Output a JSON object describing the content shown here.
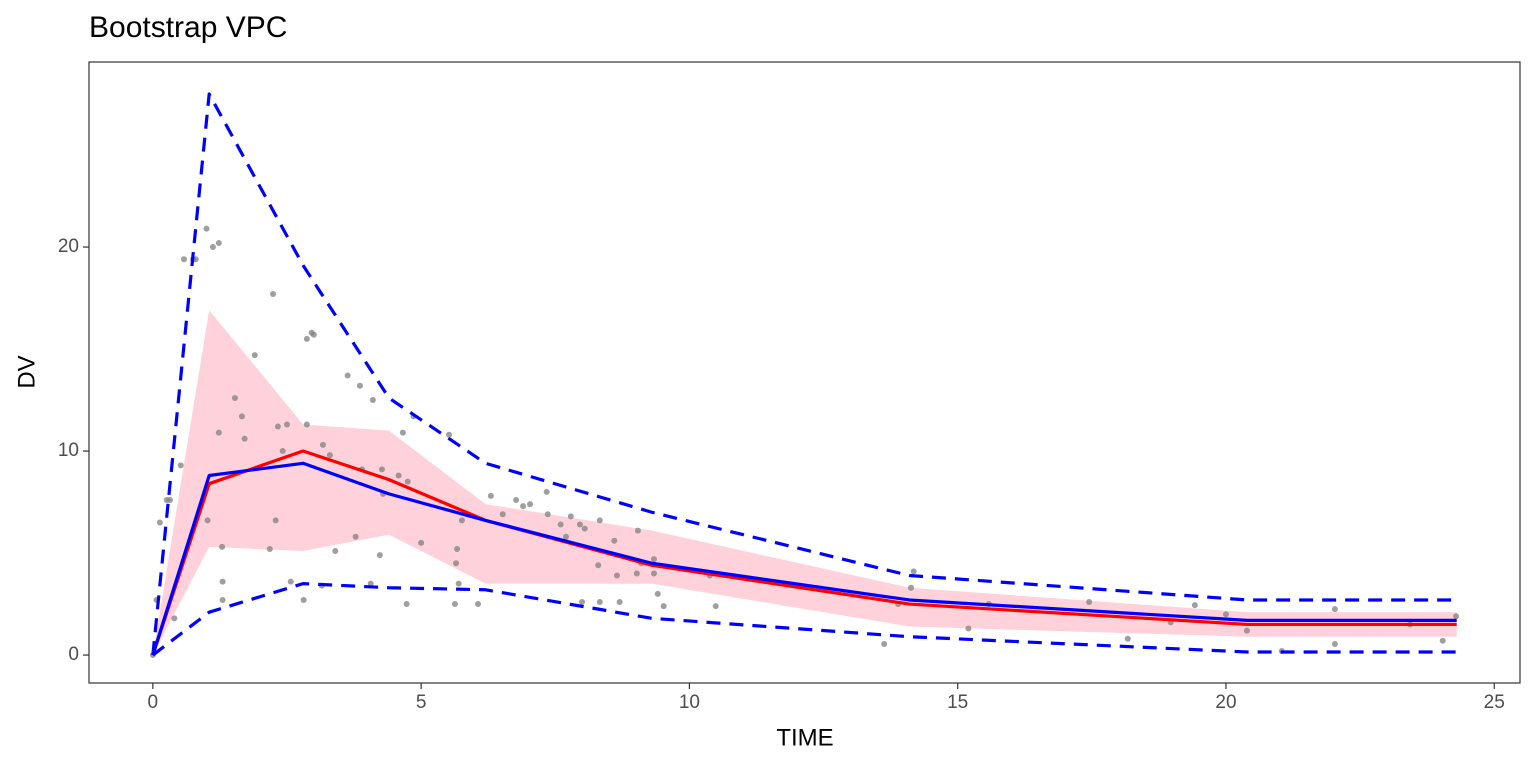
{
  "chart_data": {
    "type": "vpc",
    "title": "Bootstrap VPC",
    "x_label": "TIME",
    "y_label": "DV",
    "xlim": [
      -1.19,
      25.48
    ],
    "ylim": [
      -1.37,
      29.07
    ],
    "xticks": [
      0,
      5,
      10,
      15,
      20,
      25
    ],
    "yticks": [
      0,
      10,
      20
    ],
    "grid": false,
    "x": [
      0,
      1.05,
      2.8,
      4.4,
      6.2,
      9.3,
      14.1,
      20.4,
      24.3
    ],
    "band": {
      "color": "#ffd1da",
      "lower": [
        0,
        5.3,
        5.1,
        5.9,
        3.5,
        3.5,
        1.4,
        0.9,
        0.9
      ],
      "upper": [
        0,
        16.9,
        11.3,
        11.0,
        7.4,
        6.1,
        3.3,
        2.1,
        2.1
      ]
    },
    "points": {
      "color": "#7f7f7f",
      "x": [
        0,
        0.07,
        0.13,
        0.26,
        0.32,
        0.4,
        0.52,
        0.58,
        0.75,
        0.8,
        1.0,
        1.02,
        1.12,
        1.23,
        1.23,
        1.29,
        1.3,
        1.3,
        1.53,
        1.66,
        1.71,
        1.9,
        2.18,
        2.24,
        2.29,
        2.33,
        2.42,
        2.5,
        2.57,
        2.81,
        2.87,
        2.87,
        2.96,
        3.0,
        3.15,
        3.17,
        3.3,
        3.4,
        3.63,
        3.78,
        3.86,
        3.9,
        4.06,
        4.1,
        4.23,
        4.27,
        4.29,
        4.58,
        4.75,
        4.73,
        4.66,
        4.86,
        5.0,
        5.52,
        5.63,
        5.67,
        5.7,
        5.65,
        5.76,
        6.06,
        6.3,
        6.52,
        6.77,
        6.9,
        7.03,
        7.34,
        7.36,
        7.6,
        7.7,
        7.79,
        7.96,
        8.05,
        8.0,
        8.3,
        8.33,
        8.33,
        8.6,
        8.65,
        8.7,
        9.02,
        9.04,
        9.1,
        9.34,
        9.34,
        9.41,
        9.52,
        10.2,
        10.38,
        10.49,
        13.63,
        13.89,
        14.13,
        14.18,
        15.2,
        15.58,
        17.45,
        18.17,
        18.97,
        19.42,
        20.0,
        20.39,
        21.04,
        22.03,
        22.03,
        23.43,
        24.04,
        24.29
      ],
      "y": [
        0,
        2.7,
        6.5,
        7.6,
        7.6,
        1.8,
        9.3,
        19.4,
        19.4,
        19.4,
        20.9,
        6.6,
        20.0,
        20.2,
        10.9,
        5.3,
        3.6,
        2.7,
        12.6,
        11.7,
        10.6,
        14.7,
        5.2,
        17.7,
        6.6,
        11.2,
        10.0,
        11.3,
        3.6,
        2.7,
        11.3,
        15.5,
        15.8,
        15.7,
        3.4,
        10.3,
        9.8,
        5.1,
        13.7,
        5.8,
        13.2,
        9.1,
        3.5,
        12.5,
        4.9,
        9.1,
        7.9,
        8.8,
        8.5,
        2.5,
        10.9,
        11.7,
        5.5,
        10.8,
        2.5,
        5.2,
        3.5,
        4.5,
        6.6,
        2.5,
        7.8,
        6.9,
        7.6,
        7.3,
        7.4,
        8.0,
        6.9,
        6.4,
        5.8,
        6.8,
        6.4,
        6.2,
        2.6,
        4.4,
        6.6,
        2.6,
        5.6,
        3.9,
        2.6,
        4.0,
        6.1,
        4.5,
        4.7,
        4.0,
        3.0,
        2.4,
        4.1,
        3.9,
        2.4,
        0.54,
        2.5,
        3.3,
        4.1,
        1.3,
        2.5,
        2.6,
        0.8,
        1.6,
        2.45,
        2.0,
        1.2,
        0.2,
        2.25,
        0.54,
        1.5,
        0.7,
        1.9
      ]
    },
    "series": [
      {
        "color": "#0000ff",
        "dash": true,
        "values": [
          0,
          27.5,
          19.1,
          12.6,
          9.4,
          7.0,
          3.9,
          2.7,
          2.7
        ]
      },
      {
        "color": "#0000ff",
        "dash": true,
        "values": [
          0,
          2.1,
          3.5,
          3.3,
          3.2,
          1.8,
          0.9,
          0.15,
          0.15
        ]
      },
      {
        "color": "#ff0000",
        "dash": false,
        "values": [
          0,
          8.4,
          10.0,
          8.6,
          6.6,
          4.4,
          2.5,
          1.5,
          1.5
        ]
      },
      {
        "color": "#0000ff",
        "dash": false,
        "values": [
          0,
          8.8,
          9.4,
          7.9,
          6.6,
          4.5,
          2.7,
          1.7,
          1.7
        ]
      }
    ]
  }
}
